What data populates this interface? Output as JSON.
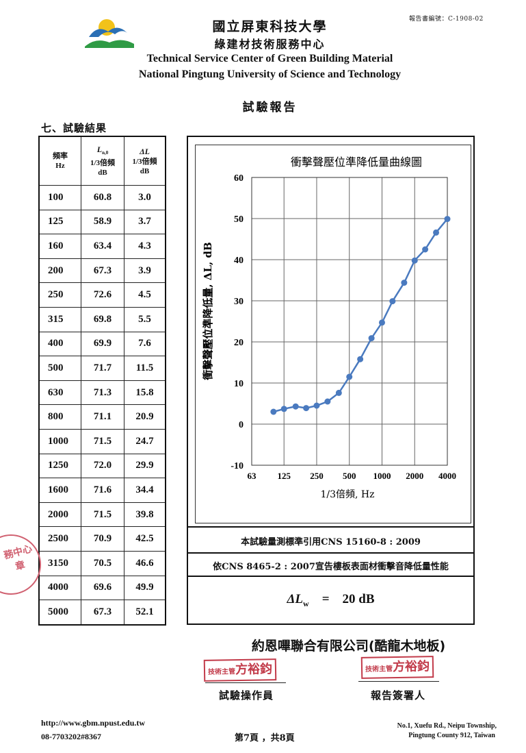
{
  "header": {
    "report_number": "報告書編號：C-1908-02",
    "org_name_cn": "國立屏東科技大學",
    "center_name_cn": "綠建材技術服務中心",
    "center_name_en": "Technical Service Center of Green Building Material",
    "university_en": "National Pingtung University of Science and Technology",
    "document_title": "試驗報告",
    "logo_icon": "npust-logo-icon"
  },
  "results_table": {
    "section_title": "七、試驗結果",
    "headers": {
      "freq": [
        "頻率",
        "Hz"
      ],
      "ln": [
        "L",
        "n,0",
        "1/3倍頻",
        "dB"
      ],
      "dl": [
        "ΔL",
        "1/3倍頻",
        "dB"
      ]
    },
    "rows": [
      {
        "freq": "100",
        "ln": "60.8",
        "dl": "3.0"
      },
      {
        "freq": "125",
        "ln": "58.9",
        "dl": "3.7"
      },
      {
        "freq": "160",
        "ln": "63.4",
        "dl": "4.3"
      },
      {
        "freq": "200",
        "ln": "67.3",
        "dl": "3.9"
      },
      {
        "freq": "250",
        "ln": "72.6",
        "dl": "4.5"
      },
      {
        "freq": "315",
        "ln": "69.8",
        "dl": "5.5"
      },
      {
        "freq": "400",
        "ln": "69.9",
        "dl": "7.6"
      },
      {
        "freq": "500",
        "ln": "71.7",
        "dl": "11.5"
      },
      {
        "freq": "630",
        "ln": "71.3",
        "dl": "15.8"
      },
      {
        "freq": "800",
        "ln": "71.1",
        "dl": "20.9"
      },
      {
        "freq": "1000",
        "ln": "71.5",
        "dl": "24.7"
      },
      {
        "freq": "1250",
        "ln": "72.0",
        "dl": "29.9"
      },
      {
        "freq": "1600",
        "ln": "71.6",
        "dl": "34.4"
      },
      {
        "freq": "2000",
        "ln": "71.5",
        "dl": "39.8"
      },
      {
        "freq": "2500",
        "ln": "70.9",
        "dl": "42.5"
      },
      {
        "freq": "3150",
        "ln": "70.5",
        "dl": "46.6"
      },
      {
        "freq": "4000",
        "ln": "69.6",
        "dl": "49.9"
      },
      {
        "freq": "5000",
        "ln": "67.3",
        "dl": "52.1"
      }
    ]
  },
  "chart_data": {
    "type": "line",
    "title": "衝擊聲壓位準降低量曲線圖",
    "xlabel": "1/3倍頻, Hz",
    "ylabel": "衝擊聲壓位準降低量, ΔL, dB",
    "x_scale": "log",
    "xlim": [
      63,
      4000
    ],
    "ylim": [
      -10,
      60
    ],
    "x_ticks": [
      63,
      125,
      250,
      500,
      1000,
      2000,
      4000
    ],
    "y_ticks": [
      -10,
      0,
      10,
      20,
      30,
      40,
      50,
      60
    ],
    "grid": true,
    "series_color": "#4a7abf",
    "x": [
      100,
      125,
      160,
      200,
      250,
      315,
      400,
      500,
      630,
      800,
      1000,
      1250,
      1600,
      2000,
      2500,
      3150,
      4000
    ],
    "y": [
      3.0,
      3.7,
      4.3,
      3.9,
      4.5,
      5.5,
      7.6,
      11.5,
      15.8,
      20.9,
      24.7,
      29.9,
      34.4,
      39.8,
      42.5,
      46.6,
      49.9
    ]
  },
  "standards": {
    "line1": "本試驗量測標準引用CNS 15160-8 : 2009",
    "line2": "依CNS 8465-2 : 2007宣告樓板表面材衝擊音降低量性能"
  },
  "result": {
    "symbol": "ΔL",
    "subscript": "w",
    "equals": "=",
    "value": "20 dB"
  },
  "company": "約恩嗶聯合有限公司(酷龍木地板)",
  "signatures": {
    "stamp1_title": "技術主管",
    "stamp1_name": "方裕鈞",
    "stamp2_title": "技術主管",
    "stamp2_name": "方裕鈞",
    "operator_label": "試驗操作員",
    "signer_label": "報告簽署人"
  },
  "seal": {
    "text_line1": "務中心",
    "text_line2": "章"
  },
  "footer": {
    "url": "http://www.gbm.npust.edu.tw",
    "phone": "08-7703202#8367",
    "page": "第7頁 ，共8頁",
    "address1": "No.1, Xuefu Rd., Neipu Township,",
    "address2": "Pingtung County 912, Taiwan"
  }
}
